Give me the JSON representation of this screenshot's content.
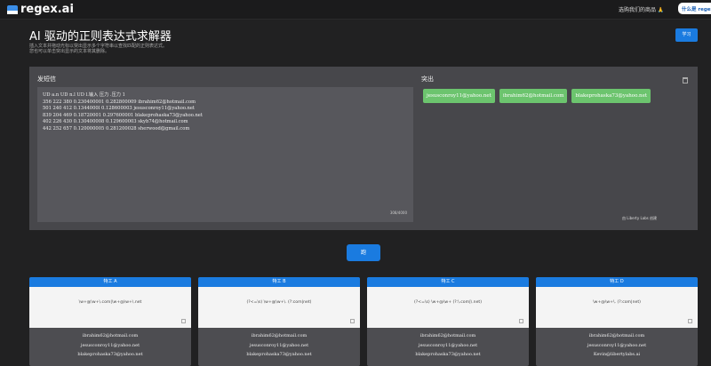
{
  "header": {
    "logo": "regex.ai",
    "promo": "选购我们的商品 🙏",
    "whatis": "什么是 regex.ai"
  },
  "title": "AI 驱动的正则表达式求解器",
  "subtitle": [
    "插入文本并拖动光标以突出显示多个字符串以查找匹配的正则表达式。",
    "您也可以单击突出显示的文本将其删除。"
  ],
  "learn_button": "学习",
  "input": {
    "label": "发短信",
    "text": "UD a.n UD n.l UD l.输入 压力 .压力 1\n356 222 380 0.230400001 0.282800009 ibrahim62@hotmail.com\n501 240 412 0.1344000l 0.128600003 jesusconroy11@yahoo.net\n839 204 469 0.18720001 0.297600001 blakeprohaska73@yahoo.net\n402 226 430 0.130400008 0.129600003 skyb74@hotmail.com\n442 252 657 0.120000005 0.281200028 sherwood@gmail.com",
    "count": "308/4000"
  },
  "output": {
    "label": "突出",
    "highlights": [
      "jesusconroy11@yahoo.net",
      "ibrahim62@hotmail.com",
      "blakeprohaska73@yahoo.net"
    ],
    "credit": "由 Liberty Labs 创建"
  },
  "run_button": "跑",
  "agents": [
    {
      "name": "特工 A",
      "regex": "\\w+@\\w+\\.com|\\w+@\\w+\\.net",
      "matches": [
        "ibrahim62@hotmail.com",
        "jesusconroy11@yahoo.net",
        "blakeprohaska73@yahoo.net"
      ]
    },
    {
      "name": "特工 B",
      "regex": "(?<=\\s) \\w+@\\w+\\. (?:com|net)",
      "matches": [
        "ibrahim62@hotmail.com",
        "jesusconroy11@yahoo.net",
        "blakeprohaska73@yahoo.net"
      ]
    },
    {
      "name": "特工 C",
      "regex": "(?<=\\s) \\w+@\\w+ (?:\\.com|\\.net)",
      "matches": [
        "ibrahim62@hotmail.com",
        "jesusconroy11@yahoo.net",
        "blakeprohaska73@yahoo.net"
      ]
    },
    {
      "name": "特工 D",
      "regex": "\\w+@\\w+\\. (?:com|net)",
      "matches": [
        "ibrahim62@hotmail.com",
        "jesusconroy11@yahoo.net",
        "Kevin@libertylabs.ai"
      ]
    }
  ],
  "colors": {
    "accent": "#1a7be0",
    "highlight": "#6cc46e"
  }
}
